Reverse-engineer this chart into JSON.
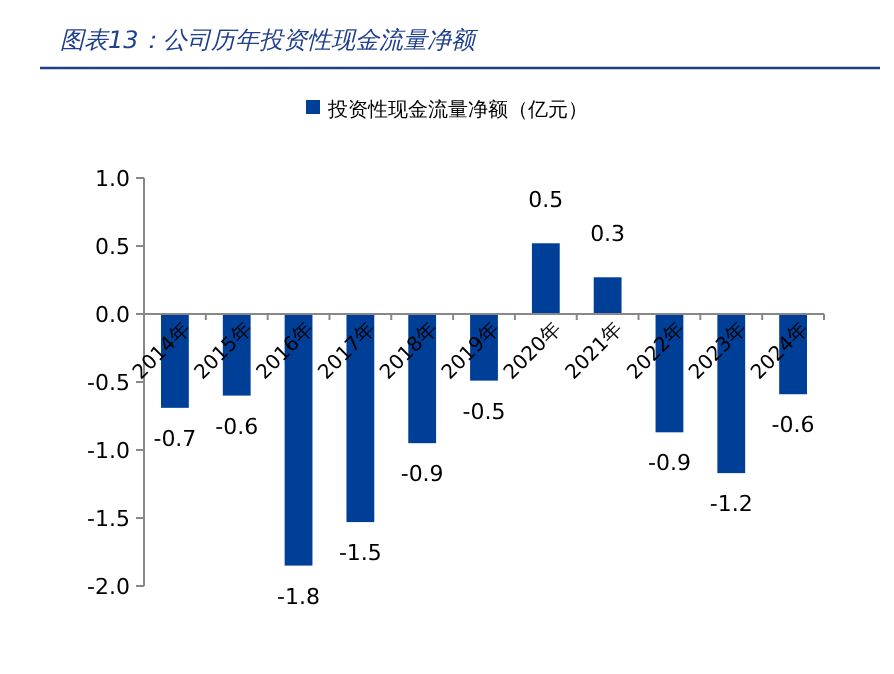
{
  "chart_data": {
    "type": "bar",
    "title": "图表13：公司历年投资性现金流量净额",
    "categories": [
      "2014年",
      "2015年",
      "2016年",
      "2017年",
      "2018年",
      "2019年",
      "2020年",
      "2021年",
      "2022年",
      "2023年",
      "2024年"
    ],
    "series": [
      {
        "name": "投资性现金流量净额（亿元）",
        "color": "#003f98",
        "values": [
          -0.69,
          -0.6,
          -1.85,
          -1.53,
          -0.95,
          -0.49,
          0.52,
          0.27,
          -0.87,
          -1.17,
          -0.59
        ],
        "value_labels": [
          "-0.7",
          "-0.6",
          "-1.8",
          "-1.5",
          "-0.9",
          "-0.5",
          "0.5",
          "0.3",
          "-0.9",
          "-1.2",
          "-0.6"
        ]
      }
    ],
    "ylim": [
      -2.0,
      1.0
    ],
    "yticks": [
      {
        "value": -2,
        "label": "-2.0"
      },
      {
        "value": -1.5,
        "label": "-1.5"
      },
      {
        "value": -1,
        "label": "-1.0"
      },
      {
        "value": -0.5,
        "label": "-0.5"
      },
      {
        "value": 0,
        "label": "0.0"
      },
      {
        "value": 0.5,
        "label": "0.5"
      },
      {
        "value": 1,
        "label": "1.0"
      }
    ],
    "legend": "top",
    "grid": false
  }
}
